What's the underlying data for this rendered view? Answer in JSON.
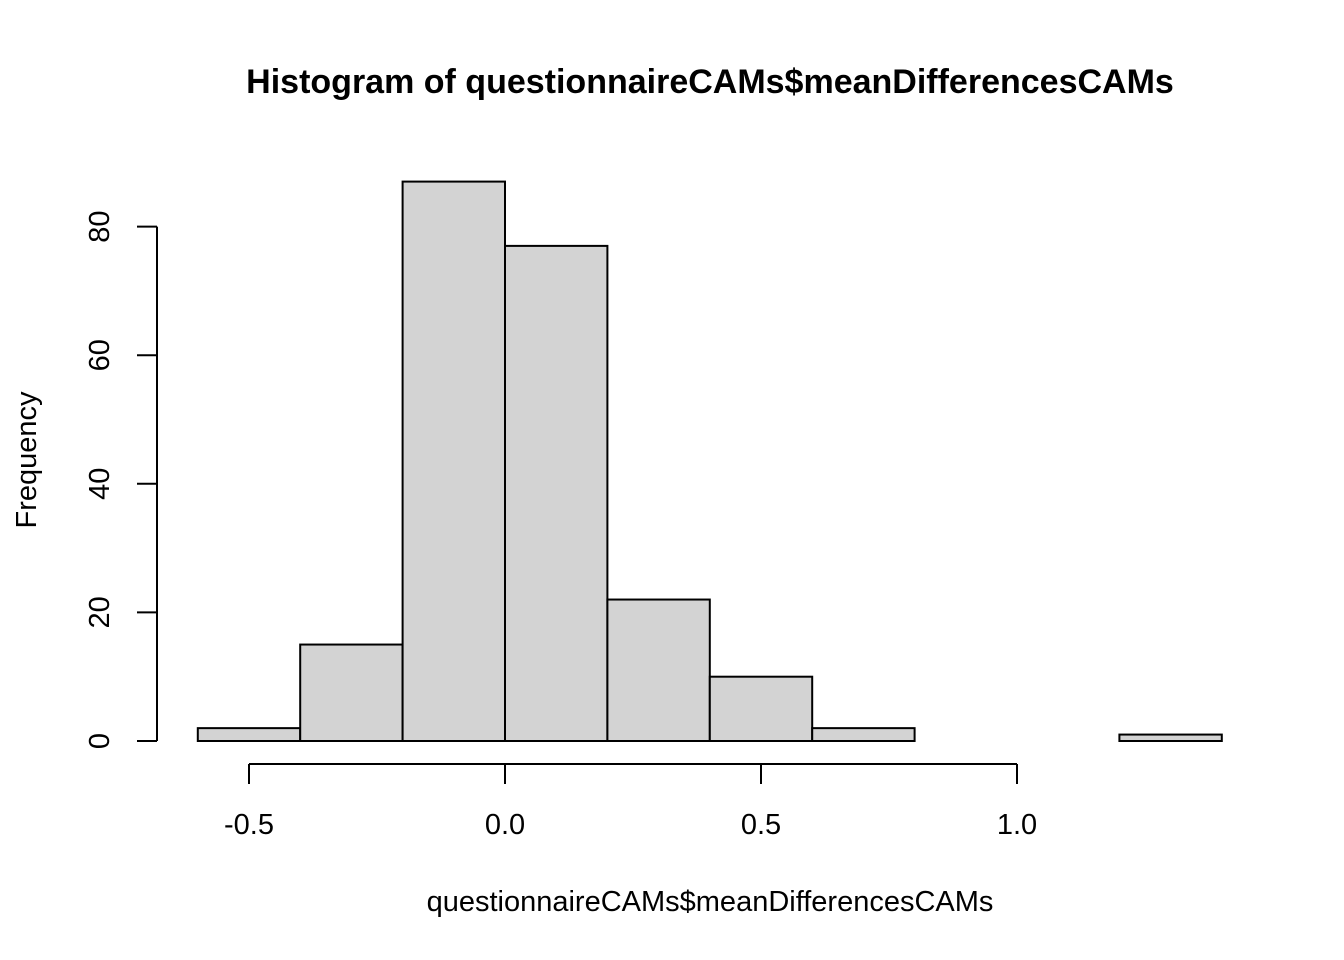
{
  "chart_data": {
    "type": "bar",
    "subtype": "histogram",
    "title": "Histogram of questionnaireCAMs$meanDifferencesCAMs",
    "xlabel": "questionnaireCAMs$meanDifferencesCAMs",
    "ylabel": "Frequency",
    "bins": [
      {
        "start": -0.6,
        "end": -0.4,
        "count": 2
      },
      {
        "start": -0.4,
        "end": -0.2,
        "count": 15
      },
      {
        "start": -0.2,
        "end": 0.0,
        "count": 87
      },
      {
        "start": 0.0,
        "end": 0.2,
        "count": 77
      },
      {
        "start": 0.2,
        "end": 0.4,
        "count": 22
      },
      {
        "start": 0.4,
        "end": 0.6,
        "count": 10
      },
      {
        "start": 0.6,
        "end": 0.8,
        "count": 2
      },
      {
        "start": 0.8,
        "end": 1.0,
        "count": 0
      },
      {
        "start": 1.0,
        "end": 1.2,
        "count": 0
      },
      {
        "start": 1.2,
        "end": 1.4,
        "count": 1
      }
    ],
    "x_ticks": [
      -0.5,
      0.0,
      0.5,
      1.0
    ],
    "x_tick_labels": [
      "-0.5",
      "0.0",
      "0.5",
      "1.0"
    ],
    "y_ticks": [
      0,
      20,
      40,
      60,
      80
    ],
    "y_tick_labels": [
      "0",
      "20",
      "40",
      "60",
      "80"
    ],
    "xlim": [
      -0.6,
      1.4
    ],
    "ylim": [
      0,
      87
    ],
    "bar_fill": "#d3d3d3",
    "bar_stroke": "#000000",
    "grid": false,
    "legend": "none"
  }
}
